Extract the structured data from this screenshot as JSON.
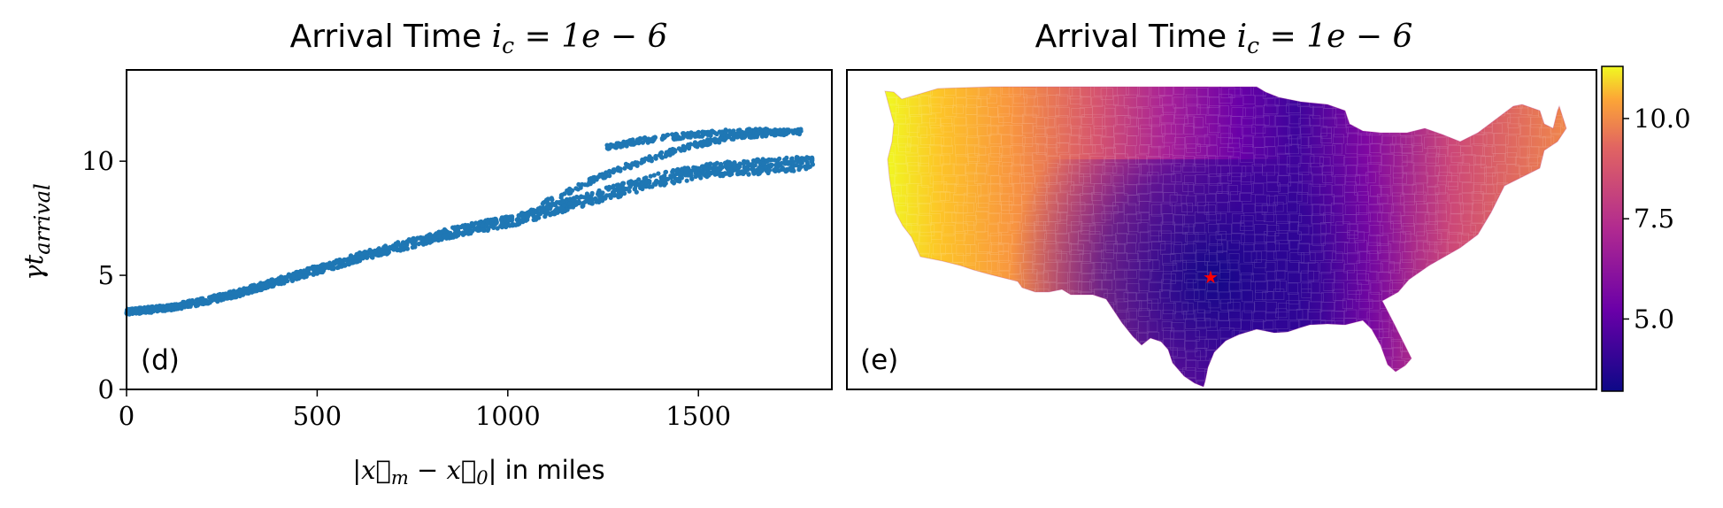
{
  "chart_data": [
    {
      "type": "scatter",
      "panel_label": "(d)",
      "title_prefix": "Arrival Time",
      "title_math": "i",
      "title_math_sub": "c",
      "title_math_rest": " = 1e − 6",
      "xlabel": "|x⃗",
      "xlabel_sub_a": "m",
      "xlabel_mid": " − x⃗",
      "xlabel_sub_b": "0",
      "xlabel_rest": "| in miles",
      "ylabel": "γt",
      "ylabel_sub": "arrival",
      "xlim": [
        0,
        1850
      ],
      "ylim": [
        0,
        14
      ],
      "xticks": [
        0,
        500,
        1000,
        1500
      ],
      "yticks": [
        0,
        5,
        10
      ],
      "point_color": "#1f77b4",
      "bands": [
        {
          "x": [
            0,
            100,
            200,
            300,
            400,
            500,
            600,
            700,
            800,
            900,
            1000,
            1100,
            1200,
            1300,
            1400,
            1500,
            1600,
            1700,
            1800
          ],
          "y": [
            3.4,
            3.55,
            3.85,
            4.25,
            4.75,
            5.25,
            5.75,
            6.2,
            6.65,
            7.05,
            7.35,
            7.8,
            8.3,
            8.75,
            9.2,
            9.55,
            9.7,
            9.8,
            9.9
          ]
        },
        {
          "x": [
            1050,
            1100,
            1200,
            1300,
            1400,
            1500,
            1600,
            1700,
            1770
          ],
          "y": [
            7.6,
            8.2,
            9.0,
            9.7,
            10.25,
            10.75,
            11.1,
            11.25,
            11.3
          ]
        },
        {
          "x": [
            1260,
            1350,
            1450,
            1550,
            1650,
            1750
          ],
          "y": [
            10.6,
            10.9,
            11.1,
            11.25,
            11.3,
            11.3
          ]
        }
      ]
    },
    {
      "type": "heatmap",
      "panel_label": "(e)",
      "title_prefix": "Arrival Time",
      "title_math": "i",
      "title_math_sub": "c",
      "title_math_rest": " = 1e − 6",
      "colormap": "plasma",
      "colorbar_range": [
        3.2,
        11.3
      ],
      "colorbar_ticks": [
        {
          "value": 5.0,
          "label": "5.0"
        },
        {
          "value": 7.5,
          "label": "7.5"
        },
        {
          "value": 10.0,
          "label": "10.0"
        }
      ],
      "source_marker_color": "#ff0000"
    }
  ]
}
